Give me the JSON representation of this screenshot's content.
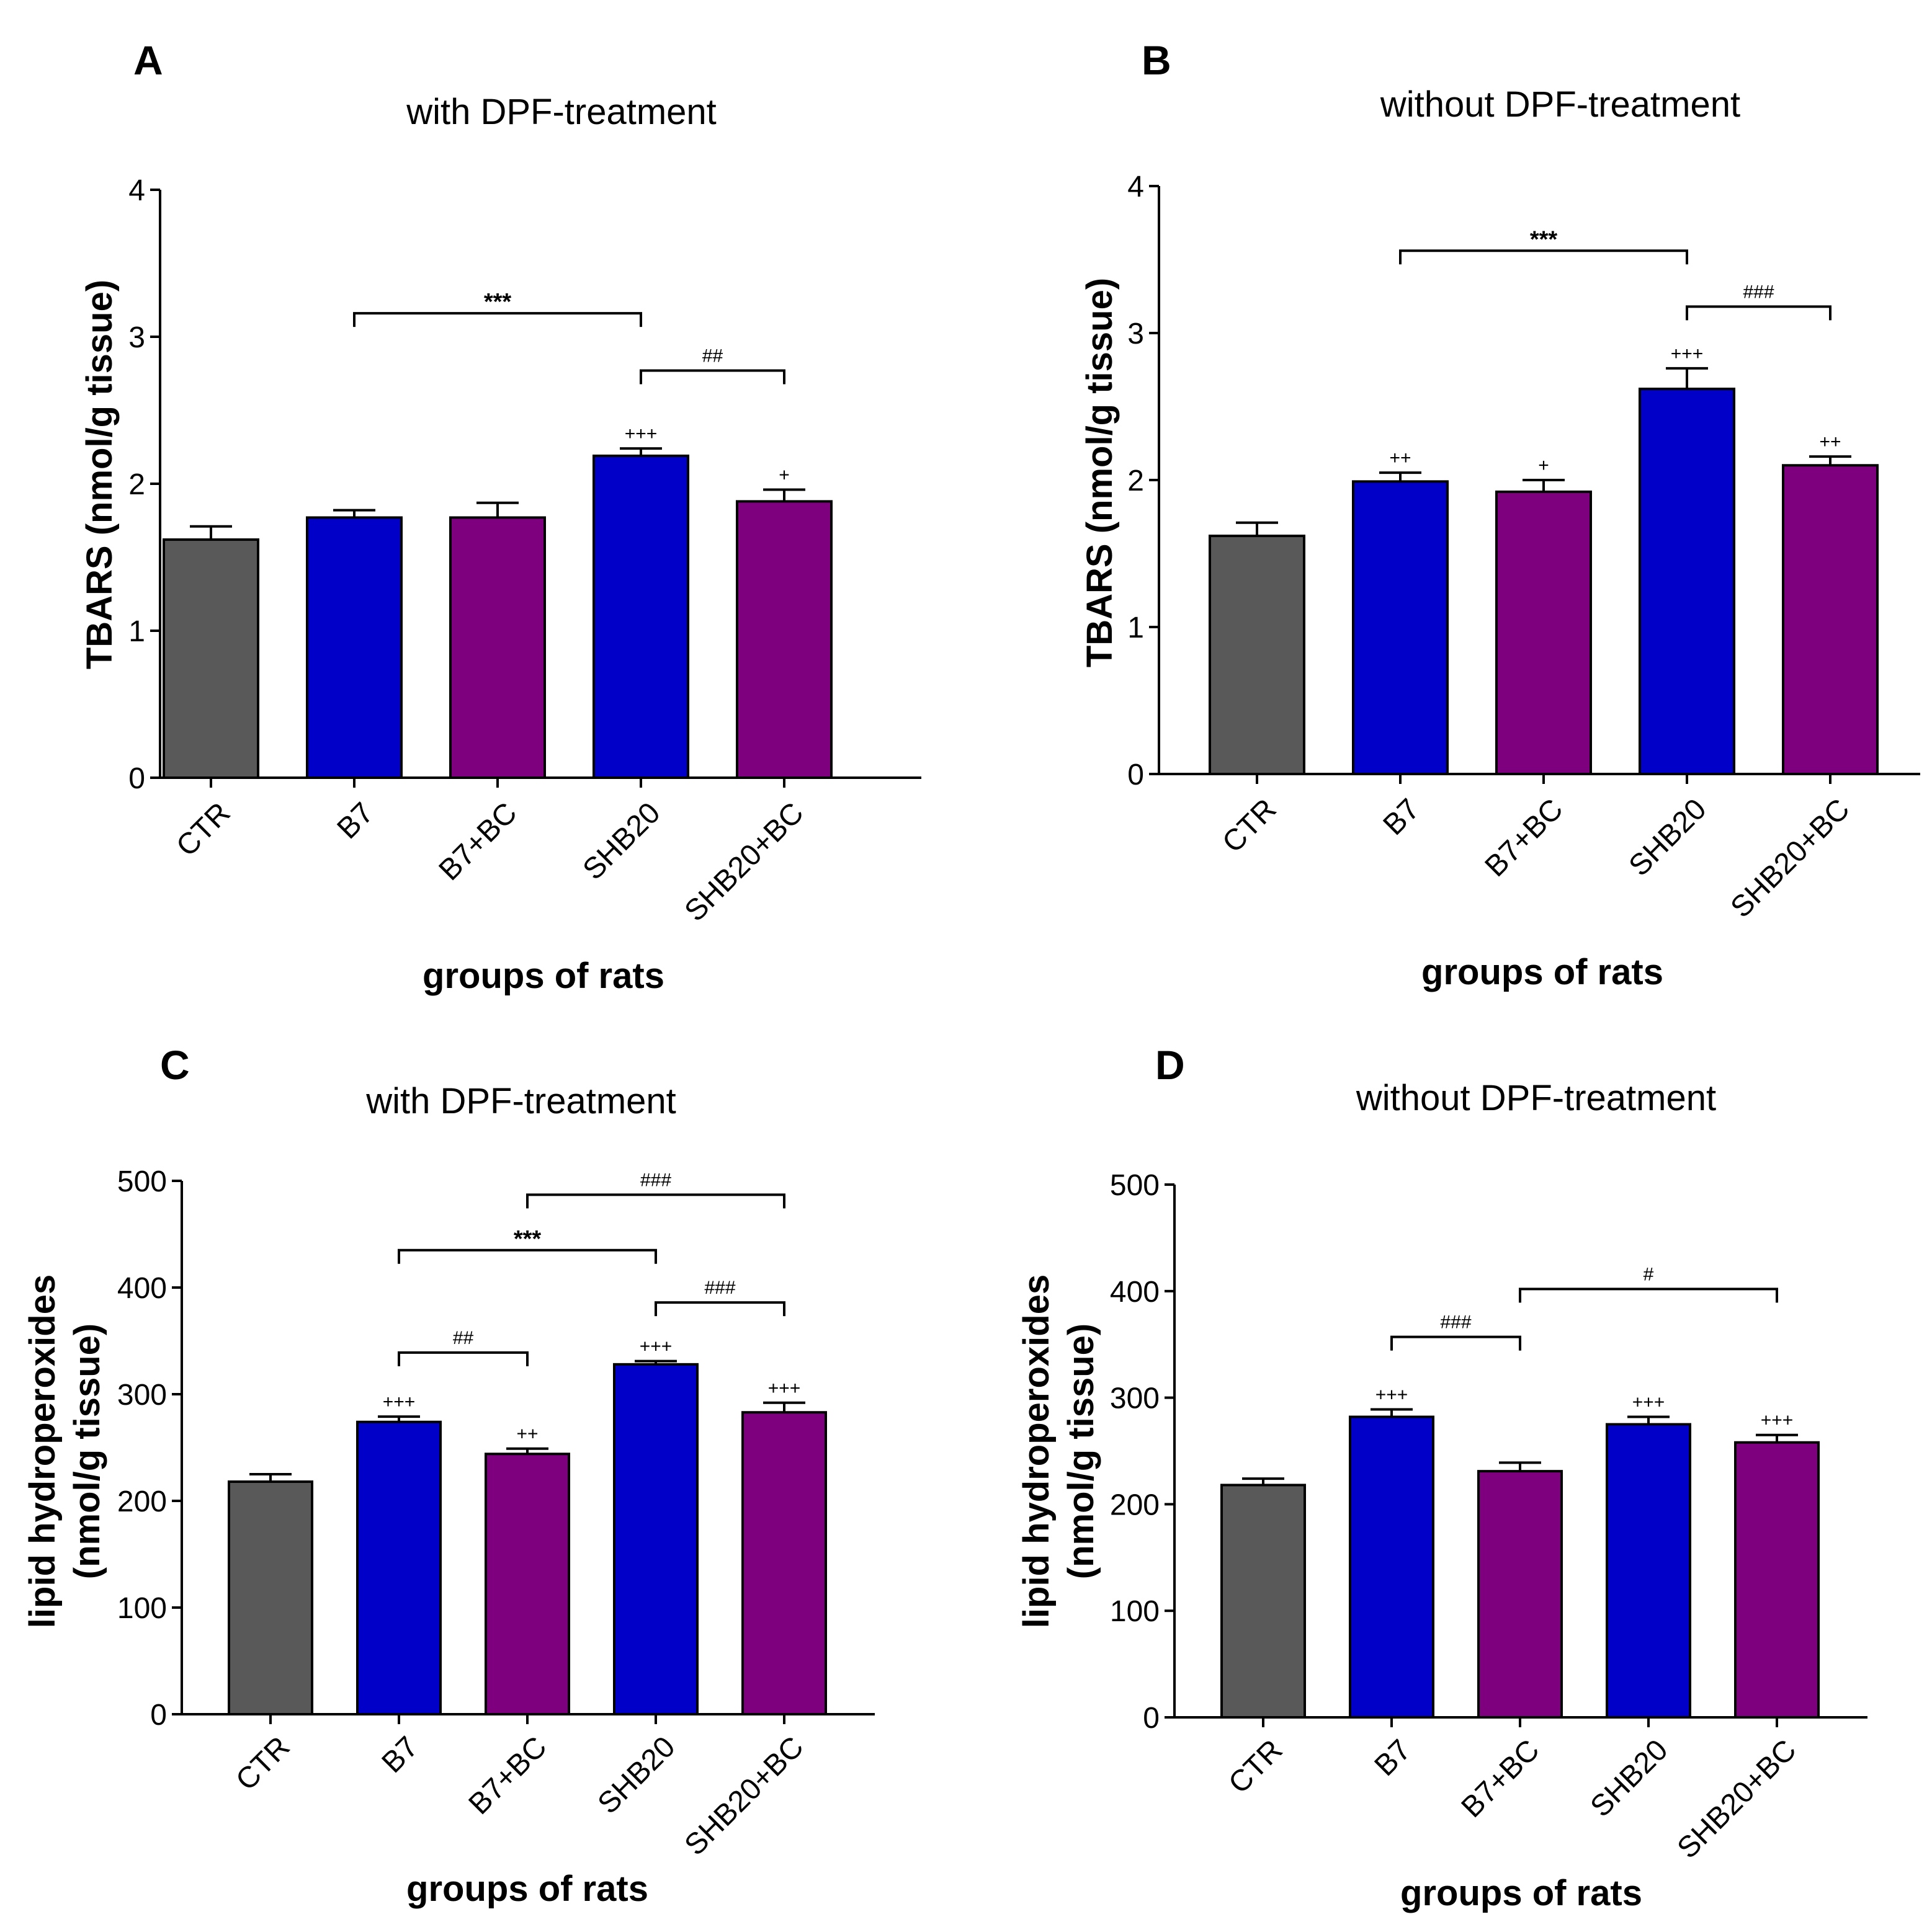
{
  "chart_data": [
    {
      "type": "bar",
      "panel": "A",
      "title": "with DPF-treatment",
      "ylabel": "TBARS (nmol/g tissue)",
      "xlabel": "groups of rats",
      "categories": [
        "CTR",
        "B7",
        "B7+BC",
        "SHB20",
        "SHB20+BC"
      ],
      "values": [
        1.62,
        1.77,
        1.77,
        2.19,
        1.88
      ],
      "errors": [
        0.09,
        0.05,
        0.1,
        0.05,
        0.08
      ],
      "bar_colors": [
        "#595959",
        "#0000c8",
        "#7f007f",
        "#0000c8",
        "#7f007f"
      ],
      "ylim": [
        0,
        4
      ],
      "yticks": [
        "0",
        "1",
        "2",
        "3",
        "4"
      ],
      "bar_annotations": [
        "",
        "",
        "",
        "+++",
        "+"
      ],
      "brackets": [
        {
          "from": 1,
          "to": 3,
          "level": 3.16,
          "label": "***"
        },
        {
          "from": 3,
          "to": 4,
          "level": 2.77,
          "label": "##"
        }
      ]
    },
    {
      "type": "bar",
      "panel": "B",
      "title": "without DPF-treatment",
      "ylabel": "TBARS (nmol/g tissue)",
      "xlabel": "groups of rats",
      "categories": [
        "CTR",
        "B7",
        "B7+BC",
        "SHB20",
        "SHB20+BC"
      ],
      "values": [
        1.62,
        1.99,
        1.92,
        2.62,
        2.1
      ],
      "errors": [
        0.09,
        0.06,
        0.08,
        0.14,
        0.06
      ],
      "bar_colors": [
        "#595959",
        "#0000c8",
        "#7f007f",
        "#0000c8",
        "#7f007f"
      ],
      "ylim": [
        0,
        4
      ],
      "yticks": [
        "0",
        "1",
        "2",
        "3",
        "4"
      ],
      "bar_annotations": [
        "",
        "++",
        "+",
        "+++",
        "++"
      ],
      "brackets": [
        {
          "from": 1,
          "to": 3,
          "level": 3.56,
          "label": "***"
        },
        {
          "from": 3,
          "to": 4,
          "level": 3.18,
          "label": "###"
        }
      ]
    },
    {
      "type": "bar",
      "panel": "C",
      "title": "with DPF-treatment",
      "ylabel": "lipid hydroperoxides (nmol/g tissue)",
      "ylabel_lines": [
        "lipid hydroperoxides",
        "(nmol/g tissue)"
      ],
      "xlabel": "groups of rats",
      "categories": [
        "CTR",
        "B7",
        "B7+BC",
        "SHB20",
        "SHB20+BC"
      ],
      "values": [
        218,
        274,
        244,
        328,
        283
      ],
      "errors": [
        7,
        5,
        5,
        3,
        9
      ],
      "bar_colors": [
        "#595959",
        "#0000c8",
        "#7f007f",
        "#0000c8",
        "#7f007f"
      ],
      "ylim": [
        0,
        500
      ],
      "yticks": [
        "0",
        "100",
        "200",
        "300",
        "400",
        "500"
      ],
      "bar_annotations": [
        "",
        "+++",
        "++",
        "+++",
        "+++"
      ],
      "brackets": [
        {
          "from": 2,
          "to": 4,
          "level": 487,
          "label": "###"
        },
        {
          "from": 1,
          "to": 3,
          "level": 435,
          "label": "***"
        },
        {
          "from": 3,
          "to": 4,
          "level": 386,
          "label": "###"
        },
        {
          "from": 1,
          "to": 2,
          "level": 339,
          "label": "##"
        }
      ]
    },
    {
      "type": "bar",
      "panel": "D",
      "title": "without DPF-treatment",
      "ylabel": "lipid hydroperoxides (nmol/g tissue)",
      "ylabel_lines": [
        "lipid hydroperoxides",
        "(nmol/g tissue)"
      ],
      "xlabel": "groups of rats",
      "categories": [
        "CTR",
        "B7",
        "B7+BC",
        "SHB20",
        "SHB20+BC"
      ],
      "values": [
        218,
        282,
        231,
        275,
        258
      ],
      "errors": [
        6,
        7,
        8,
        7,
        7
      ],
      "bar_colors": [
        "#595959",
        "#0000c8",
        "#7f007f",
        "#0000c8",
        "#7f007f"
      ],
      "ylim": [
        0,
        500
      ],
      "yticks": [
        "0",
        "100",
        "200",
        "300",
        "400",
        "500"
      ],
      "bar_annotations": [
        "",
        "+++",
        "",
        "+++",
        "+++"
      ],
      "brackets": [
        {
          "from": 2,
          "to": 4,
          "level": 402,
          "label": "#"
        },
        {
          "from": 1,
          "to": 2,
          "level": 357,
          "label": "###"
        }
      ]
    }
  ]
}
